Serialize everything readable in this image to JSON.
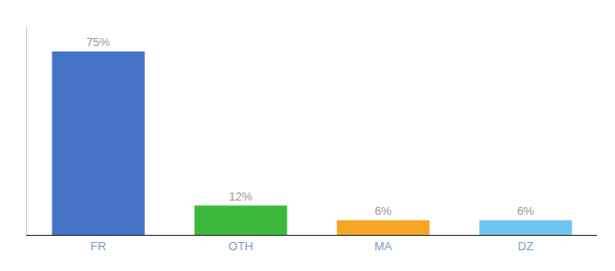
{
  "chart_data": {
    "type": "bar",
    "categories": [
      "FR",
      "OTH",
      "MA",
      "DZ"
    ],
    "values": [
      75,
      12,
      6,
      6
    ],
    "value_labels": [
      "75%",
      "12%",
      "6%",
      "6%"
    ],
    "data_labels": true,
    "colors": [
      "#4472c4",
      "#3cb83c",
      "#f5a623",
      "#6ec6f0"
    ],
    "ylim": [
      0,
      85
    ],
    "grid": false,
    "tick_labels": "x"
  }
}
